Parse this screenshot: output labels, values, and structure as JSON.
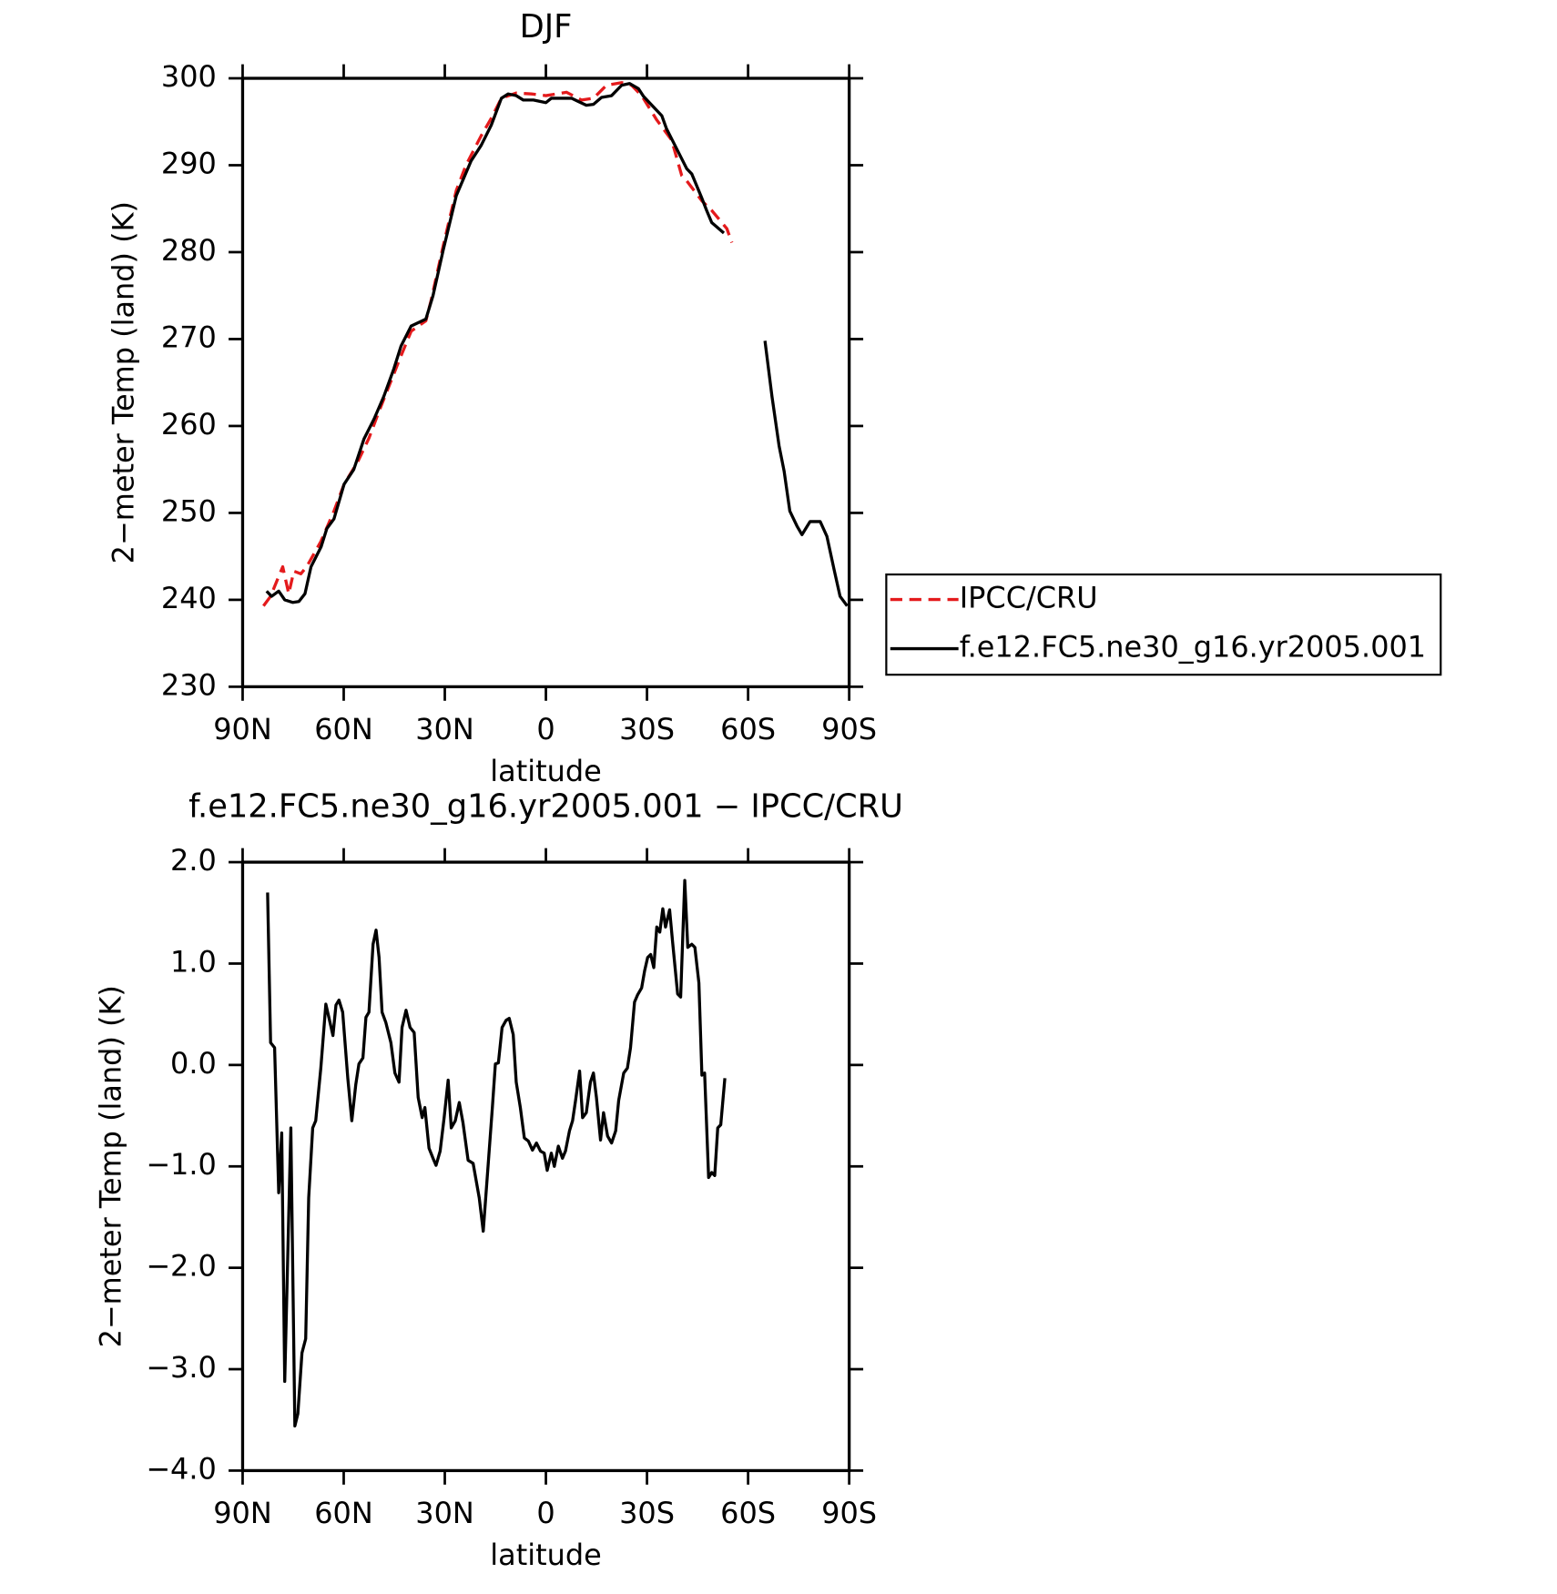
{
  "chart_data": [
    {
      "type": "line",
      "title": "DJF",
      "xlabel": "latitude",
      "ylabel": "2−meter Temp (land) (K)",
      "xlim": [
        90,
        -90
      ],
      "xticks": [
        {
          "value": 90,
          "label": "90N"
        },
        {
          "value": 60,
          "label": "60N"
        },
        {
          "value": 30,
          "label": "30N"
        },
        0,
        {
          "value": -30,
          "label": "30S"
        },
        {
          "value": -60,
          "label": "60S"
        },
        {
          "value": -90,
          "label": "90S"
        }
      ],
      "ylim": [
        230,
        300
      ],
      "yticks": [
        230,
        240,
        250,
        260,
        270,
        280,
        290,
        300
      ],
      "legend": "right",
      "series": [
        {
          "name": "IPCC/CRU",
          "color": "#e41a1c",
          "dash": true,
          "x": [
            83.8,
            81.7,
            79.9,
            78.1,
            76.3,
            74.8,
            72.7,
            71.0,
            66.8,
            62.9,
            59.9,
            55.8,
            52.5,
            49.5,
            43.6,
            40.0,
            35.6,
            34.1,
            30.5,
            26.6,
            23.7,
            19.2,
            16.2,
            13.2,
            8.8,
            4.3,
            0,
            -6.1,
            -10.6,
            -14.1,
            -18.0,
            -22.5,
            -25.4,
            -28.4,
            -32.9,
            -37.3,
            -40.3,
            -41.8,
            -46.3,
            -49.2,
            -53.7,
            -55.2
          ],
          "values": [
            239.3,
            240.4,
            242.1,
            243.8,
            240.7,
            243.3,
            243.0,
            243.8,
            246.7,
            250.2,
            253.3,
            255.9,
            258.6,
            261.7,
            267.5,
            270.9,
            272.1,
            274.4,
            280.7,
            287.1,
            290.0,
            293.4,
            295.4,
            297.7,
            298.3,
            298.2,
            298.0,
            298.4,
            297.5,
            297.7,
            299.2,
            299.5,
            299.2,
            298.0,
            295.2,
            292.9,
            288.8,
            288.2,
            285.9,
            284.8,
            282.7,
            281.1
          ]
        },
        {
          "name": "f.e12.FC5.ne30_g16.yr2005.001",
          "color": "#000000",
          "dash": false,
          "x": [
            82.9,
            81.4,
            79.3,
            77.5,
            75.1,
            73.3,
            71.5,
            69.7,
            66.7,
            65.0,
            62.9,
            59.9,
            57.0,
            54.0,
            51.0,
            48.1,
            45.1,
            43.0,
            40.0,
            35.6,
            33.5,
            30.5,
            26.6,
            22.2,
            19.2,
            16.2,
            13.2,
            11.2,
            8.8,
            6.7,
            3.7,
            0,
            -1.6,
            -7.6,
            -12.0,
            -14.1,
            -16.5,
            -19.5,
            -22.5,
            -24.8,
            -27.5,
            -29.0,
            -34.4,
            -35.8,
            -38.8,
            -41.8,
            -43.3,
            -46.3,
            -47.7,
            -49.2,
            -52.8,
            -59,
            -65.0,
            -67.1,
            -69.2,
            -70.7,
            -72.4,
            -74.5,
            -76.0,
            -78.4,
            -81.4,
            -83.4,
            -85.5,
            -87.3,
            -89.4
          ],
          "values": [
            241.0,
            240.4,
            241.0,
            240.0,
            239.7,
            239.8,
            240.7,
            243.8,
            246.1,
            248.2,
            249.3,
            253.3,
            255.0,
            258.5,
            260.8,
            263.4,
            266.6,
            269.2,
            271.5,
            272.3,
            275.0,
            280.2,
            286.5,
            290.5,
            292.3,
            294.6,
            297.7,
            298.2,
            298.0,
            297.5,
            297.5,
            297.2,
            297.7,
            297.7,
            296.9,
            297.0,
            297.8,
            298.0,
            299.2,
            299.4,
            298.8,
            297.9,
            295.7,
            294.2,
            291.9,
            289.6,
            289.0,
            286.2,
            284.8,
            283.4,
            282.2,
            null,
            269.8,
            263.4,
            257.7,
            254.8,
            250.2,
            248.5,
            247.5,
            249.0,
            249.0,
            247.3,
            243.5,
            240.4,
            239.3
          ]
        }
      ]
    },
    {
      "type": "line",
      "title": "f.e12.FC5.ne30_g16.yr2005.001 − IPCC/CRU",
      "xlabel": "latitude",
      "ylabel": "2−meter Temp (land) (K)",
      "xlim": [
        90,
        -90
      ],
      "xticks": [
        {
          "value": 90,
          "label": "90N"
        },
        {
          "value": 60,
          "label": "60N"
        },
        {
          "value": 30,
          "label": "30N"
        },
        0,
        {
          "value": -30,
          "label": "30S"
        },
        {
          "value": -60,
          "label": "60S"
        },
        {
          "value": -90,
          "label": "90S"
        }
      ],
      "ylim": [
        -4,
        2
      ],
      "yticks": [
        {
          "value": -4,
          "label": "−4.0"
        },
        {
          "value": -3,
          "label": "−3.0"
        },
        {
          "value": -2,
          "label": "−2.0"
        },
        {
          "value": -1,
          "label": "−1.0"
        },
        {
          "value": 0,
          "label": "0.0"
        },
        {
          "value": 1,
          "label": "1.0"
        },
        {
          "value": 2,
          "label": "2.0"
        }
      ],
      "color": "#000000",
      "x": [
        82.6,
        81.7,
        80.5,
        79.3,
        78.4,
        77.5,
        75.7,
        74.5,
        73.6,
        72.4,
        71.3,
        70.4,
        69.2,
        68.3,
        66.8,
        65.3,
        64.4,
        63.2,
        62.3,
        61.4,
        60.3,
        58.8,
        57.6,
        56.4,
        55.5,
        54.3,
        53.4,
        52.5,
        51.3,
        50.4,
        49.5,
        48.6,
        47.5,
        46.0,
        44.8,
        43.6,
        42.7,
        41.5,
        40.3,
        39.1,
        37.9,
        36.7,
        35.9,
        34.7,
        33.5,
        32.6,
        31.4,
        30.2,
        29.0,
        28.1,
        26.9,
        25.7,
        24.6,
        23.1,
        21.6,
        19.8,
        18.6,
        17.1,
        15.9,
        15.0,
        14.1,
        13.0,
        11.8,
        10.9,
        9.7,
        8.8,
        7.6,
        6.4,
        5.2,
        4.0,
        2.8,
        1.6,
        0.5,
        -0.4,
        -1.6,
        -2.5,
        -3.7,
        -4.9,
        -5.8,
        -7.0,
        -7.9,
        -8.8,
        -10.0,
        -10.9,
        -12.0,
        -13.2,
        -14.1,
        -15.0,
        -16.2,
        -17.1,
        -18.3,
        -19.5,
        -20.7,
        -21.6,
        -23.1,
        -24.2,
        -25.1,
        -26.3,
        -27.2,
        -28.4,
        -29.3,
        -30.2,
        -31.1,
        -32.0,
        -32.9,
        -33.8,
        -34.7,
        -35.5,
        -36.7,
        -37.6,
        -39.1,
        -40.0,
        -41.2,
        -42.1,
        -43.3,
        -44.2,
        -45.4,
        -46.3,
        -47.1,
        -48.3,
        -49.2,
        -50.1,
        -51.0,
        -51.9,
        -53.1
      ],
      "values": [
        1.7,
        0.22,
        0.17,
        -1.26,
        -0.67,
        -3.12,
        -0.62,
        -3.56,
        -3.44,
        -2.84,
        -2.7,
        -1.31,
        -0.62,
        -0.55,
        -0.03,
        0.6,
        0.47,
        0.29,
        0.59,
        0.64,
        0.52,
        -0.13,
        -0.55,
        -0.19,
        0.01,
        0.07,
        0.47,
        0.52,
        1.19,
        1.33,
        1.06,
        0.52,
        0.42,
        0.22,
        -0.08,
        -0.17,
        0.37,
        0.54,
        0.37,
        0.32,
        -0.32,
        -0.52,
        -0.42,
        -0.82,
        -0.92,
        -0.99,
        -0.85,
        -0.52,
        -0.15,
        -0.62,
        -0.55,
        -0.37,
        -0.57,
        -0.94,
        -0.97,
        -1.31,
        -1.64,
        -0.97,
        -0.42,
        0.01,
        0.02,
        0.37,
        0.44,
        0.46,
        0.3,
        -0.17,
        -0.42,
        -0.72,
        -0.75,
        -0.84,
        -0.77,
        -0.85,
        -0.87,
        -1.04,
        -0.87,
        -1.0,
        -0.8,
        -0.92,
        -0.85,
        -0.65,
        -0.55,
        -0.35,
        -0.06,
        -0.52,
        -0.47,
        -0.17,
        -0.08,
        -0.32,
        -0.74,
        -0.47,
        -0.7,
        -0.77,
        -0.65,
        -0.35,
        -0.08,
        -0.03,
        0.17,
        0.62,
        0.69,
        0.76,
        0.93,
        1.06,
        1.09,
        0.96,
        1.36,
        1.31,
        1.54,
        1.36,
        1.53,
        1.21,
        0.7,
        0.67,
        1.82,
        1.16,
        1.19,
        1.16,
        0.81,
        -0.1,
        -0.08,
        -1.11,
        -1.06,
        -1.09,
        -0.62,
        -0.59,
        -0.13
      ]
    }
  ]
}
